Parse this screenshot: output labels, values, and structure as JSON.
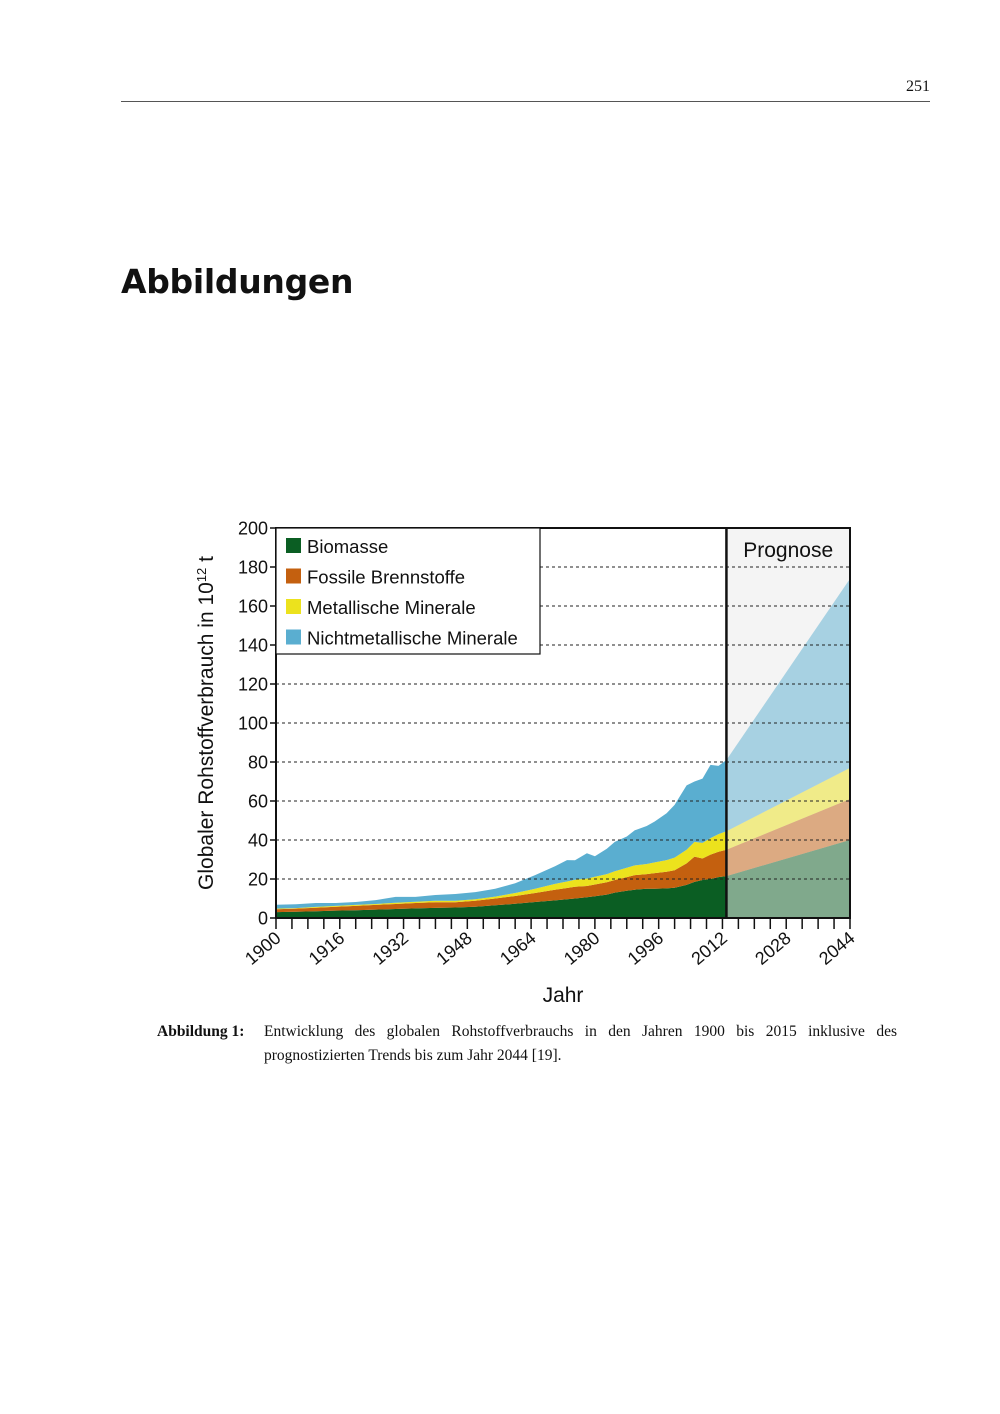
{
  "page": {
    "number": "251",
    "section_title": "Abbildungen"
  },
  "figure": {
    "caption_label": "Abbildung 1:",
    "caption_text": "Entwicklung des globalen Rohstoffverbrauchs in den Jahren 1900 bis 2015 inklusive des prognostizierten Trends bis zum Jahr 2044 [19]."
  },
  "chart_data": {
    "type": "area",
    "stacked": true,
    "xlabel": "Jahr",
    "ylabel_main": "Globaler Rohstoffverbrauch in 10",
    "ylabel_sup": "12",
    "ylabel_unit": " t",
    "xlim": [
      1900,
      2044
    ],
    "ylim": [
      0,
      200
    ],
    "x_ticks": [
      1900,
      1916,
      1932,
      1948,
      1964,
      1980,
      1996,
      2012,
      2028,
      2044
    ],
    "y_ticks": [
      0,
      20,
      40,
      60,
      80,
      100,
      120,
      140,
      160,
      180,
      200
    ],
    "grid": "horizontal dashed",
    "legend_position": "top-left",
    "prognosis_label": "Prognose",
    "prognosis_start": 2013,
    "colors": {
      "Biomasse": "#0b5e23",
      "Fossile Brennstoffe": "#c4600f",
      "Metallische Minerale": "#ece21d",
      "Nichtmetallische Minerale": "#5aaed0",
      "prognosis_background": "#f4f4f4"
    },
    "x": [
      1900,
      1905,
      1910,
      1915,
      1920,
      1925,
      1930,
      1935,
      1940,
      1945,
      1950,
      1955,
      1960,
      1965,
      1970,
      1973,
      1975,
      1978,
      1980,
      1983,
      1985,
      1988,
      1990,
      1993,
      1995,
      1998,
      2000,
      2003,
      2005,
      2007,
      2009,
      2011,
      2013
    ],
    "series": [
      {
        "name": "Biomasse",
        "values": [
          3,
          3.2,
          3.5,
          3.8,
          4,
          4.3,
          4.6,
          4.9,
          5.2,
          5.4,
          5.8,
          6.5,
          7.3,
          8.2,
          9,
          9.6,
          10,
          10.6,
          11.2,
          12,
          13,
          14,
          14.5,
          15,
          15,
          15.2,
          15.5,
          17,
          18.5,
          19.5,
          20,
          21,
          21.5
        ]
      },
      {
        "name": "Fossile Brennstoffe",
        "values": [
          1.5,
          1.6,
          1.8,
          2,
          2.2,
          2.4,
          2.6,
          2.8,
          2.9,
          2.7,
          3,
          3.5,
          4,
          4.6,
          5.5,
          5.8,
          6,
          5.8,
          6,
          6.3,
          6.5,
          7,
          7.5,
          7.5,
          8,
          8.5,
          9,
          11,
          13,
          11,
          12.5,
          13,
          13.5
        ]
      },
      {
        "name": "Metallische Minerale",
        "values": [
          0.3,
          0.3,
          0.4,
          0.4,
          0.5,
          0.5,
          0.6,
          0.6,
          0.7,
          0.7,
          0.8,
          1,
          1.5,
          2.2,
          3,
          3.3,
          3.6,
          3.8,
          4,
          4.2,
          4.5,
          4.8,
          5,
          5.2,
          5.5,
          6,
          6.5,
          7,
          7.5,
          8,
          8.5,
          9,
          9.5
        ]
      },
      {
        "name": "Nichtmetallische Minerale",
        "values": [
          2,
          2,
          2,
          1.5,
          1.5,
          2,
          3,
          2.5,
          3,
          3.5,
          3.7,
          4,
          5,
          7,
          9,
          11,
          10,
          13,
          10.5,
          13,
          15,
          16,
          18,
          19.5,
          21,
          24,
          27,
          33,
          31,
          33,
          37.5,
          35,
          36.5
        ]
      }
    ],
    "forecast": {
      "x": [
        2013,
        2044
      ],
      "cumulative_tops": {
        "Biomasse": [
          21.5,
          40
        ],
        "Fossile Brennstoffe": [
          35,
          61
        ],
        "Metallische Minerale": [
          44.5,
          77
        ],
        "Nichtmetallische Minerale": [
          81,
          174
        ]
      }
    }
  }
}
